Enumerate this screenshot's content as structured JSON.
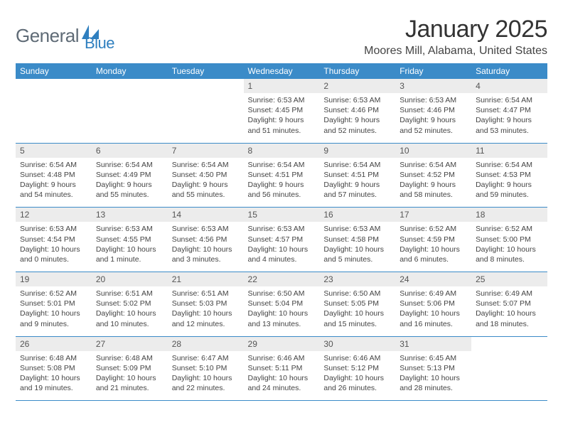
{
  "logo": {
    "part1": "General",
    "part2": "Blue"
  },
  "title": "January 2025",
  "location": "Moores Mill, Alabama, United States",
  "colors": {
    "header_bg": "#3b8bc8",
    "header_fg": "#ffffff",
    "daynum_bg": "#ececec",
    "row_border": "#3b8bc8",
    "logo_gray": "#5f6b76",
    "logo_blue": "#2f7fbf"
  },
  "weekdays": [
    "Sunday",
    "Monday",
    "Tuesday",
    "Wednesday",
    "Thursday",
    "Friday",
    "Saturday"
  ],
  "weeks": [
    [
      null,
      null,
      null,
      {
        "n": "1",
        "sr": "6:53 AM",
        "ss": "4:45 PM",
        "dl": "9 hours and 51 minutes."
      },
      {
        "n": "2",
        "sr": "6:53 AM",
        "ss": "4:46 PM",
        "dl": "9 hours and 52 minutes."
      },
      {
        "n": "3",
        "sr": "6:53 AM",
        "ss": "4:46 PM",
        "dl": "9 hours and 52 minutes."
      },
      {
        "n": "4",
        "sr": "6:54 AM",
        "ss": "4:47 PM",
        "dl": "9 hours and 53 minutes."
      }
    ],
    [
      {
        "n": "5",
        "sr": "6:54 AM",
        "ss": "4:48 PM",
        "dl": "9 hours and 54 minutes."
      },
      {
        "n": "6",
        "sr": "6:54 AM",
        "ss": "4:49 PM",
        "dl": "9 hours and 55 minutes."
      },
      {
        "n": "7",
        "sr": "6:54 AM",
        "ss": "4:50 PM",
        "dl": "9 hours and 55 minutes."
      },
      {
        "n": "8",
        "sr": "6:54 AM",
        "ss": "4:51 PM",
        "dl": "9 hours and 56 minutes."
      },
      {
        "n": "9",
        "sr": "6:54 AM",
        "ss": "4:51 PM",
        "dl": "9 hours and 57 minutes."
      },
      {
        "n": "10",
        "sr": "6:54 AM",
        "ss": "4:52 PM",
        "dl": "9 hours and 58 minutes."
      },
      {
        "n": "11",
        "sr": "6:54 AM",
        "ss": "4:53 PM",
        "dl": "9 hours and 59 minutes."
      }
    ],
    [
      {
        "n": "12",
        "sr": "6:53 AM",
        "ss": "4:54 PM",
        "dl": "10 hours and 0 minutes."
      },
      {
        "n": "13",
        "sr": "6:53 AM",
        "ss": "4:55 PM",
        "dl": "10 hours and 1 minute."
      },
      {
        "n": "14",
        "sr": "6:53 AM",
        "ss": "4:56 PM",
        "dl": "10 hours and 3 minutes."
      },
      {
        "n": "15",
        "sr": "6:53 AM",
        "ss": "4:57 PM",
        "dl": "10 hours and 4 minutes."
      },
      {
        "n": "16",
        "sr": "6:53 AM",
        "ss": "4:58 PM",
        "dl": "10 hours and 5 minutes."
      },
      {
        "n": "17",
        "sr": "6:52 AM",
        "ss": "4:59 PM",
        "dl": "10 hours and 6 minutes."
      },
      {
        "n": "18",
        "sr": "6:52 AM",
        "ss": "5:00 PM",
        "dl": "10 hours and 8 minutes."
      }
    ],
    [
      {
        "n": "19",
        "sr": "6:52 AM",
        "ss": "5:01 PM",
        "dl": "10 hours and 9 minutes."
      },
      {
        "n": "20",
        "sr": "6:51 AM",
        "ss": "5:02 PM",
        "dl": "10 hours and 10 minutes."
      },
      {
        "n": "21",
        "sr": "6:51 AM",
        "ss": "5:03 PM",
        "dl": "10 hours and 12 minutes."
      },
      {
        "n": "22",
        "sr": "6:50 AM",
        "ss": "5:04 PM",
        "dl": "10 hours and 13 minutes."
      },
      {
        "n": "23",
        "sr": "6:50 AM",
        "ss": "5:05 PM",
        "dl": "10 hours and 15 minutes."
      },
      {
        "n": "24",
        "sr": "6:49 AM",
        "ss": "5:06 PM",
        "dl": "10 hours and 16 minutes."
      },
      {
        "n": "25",
        "sr": "6:49 AM",
        "ss": "5:07 PM",
        "dl": "10 hours and 18 minutes."
      }
    ],
    [
      {
        "n": "26",
        "sr": "6:48 AM",
        "ss": "5:08 PM",
        "dl": "10 hours and 19 minutes."
      },
      {
        "n": "27",
        "sr": "6:48 AM",
        "ss": "5:09 PM",
        "dl": "10 hours and 21 minutes."
      },
      {
        "n": "28",
        "sr": "6:47 AM",
        "ss": "5:10 PM",
        "dl": "10 hours and 22 minutes."
      },
      {
        "n": "29",
        "sr": "6:46 AM",
        "ss": "5:11 PM",
        "dl": "10 hours and 24 minutes."
      },
      {
        "n": "30",
        "sr": "6:46 AM",
        "ss": "5:12 PM",
        "dl": "10 hours and 26 minutes."
      },
      {
        "n": "31",
        "sr": "6:45 AM",
        "ss": "5:13 PM",
        "dl": "10 hours and 28 minutes."
      },
      null
    ]
  ],
  "labels": {
    "sunrise": "Sunrise:",
    "sunset": "Sunset:",
    "daylight": "Daylight:"
  }
}
